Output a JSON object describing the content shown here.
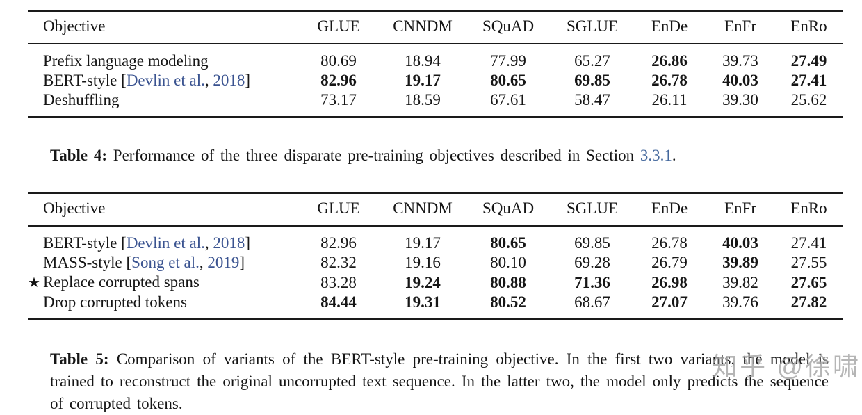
{
  "colors": {
    "citation_link": "#3a5390",
    "section_link": "#44689d",
    "rule": "#1a1a1a",
    "watermark": "#a3a3a3",
    "text": "#161616",
    "background": "#ffffff"
  },
  "icons": {
    "star": "★"
  },
  "tables": [
    {
      "name": "table-4",
      "columns": [
        "Objective",
        "GLUE",
        "CNNDM",
        "SQuAD",
        "SGLUE",
        "EnDe",
        "EnFr",
        "EnRo"
      ],
      "rows": [
        {
          "objective": "Prefix language modeling",
          "star": false,
          "cite": null,
          "values": [
            {
              "v": "80.69",
              "b": false
            },
            {
              "v": "18.94",
              "b": false
            },
            {
              "v": "77.99",
              "b": false
            },
            {
              "v": "65.27",
              "b": false
            },
            {
              "v": "26.86",
              "b": true
            },
            {
              "v": "39.73",
              "b": false
            },
            {
              "v": "27.49",
              "b": true
            }
          ]
        },
        {
          "objective": "BERT-style",
          "star": false,
          "cite": {
            "author": "Devlin et al.",
            "year": "2018"
          },
          "values": [
            {
              "v": "82.96",
              "b": true
            },
            {
              "v": "19.17",
              "b": true
            },
            {
              "v": "80.65",
              "b": true
            },
            {
              "v": "69.85",
              "b": true
            },
            {
              "v": "26.78",
              "b": true
            },
            {
              "v": "40.03",
              "b": true
            },
            {
              "v": "27.41",
              "b": true
            }
          ]
        },
        {
          "objective": "Deshuffling",
          "star": false,
          "cite": null,
          "values": [
            {
              "v": "73.17",
              "b": false
            },
            {
              "v": "18.59",
              "b": false
            },
            {
              "v": "67.61",
              "b": false
            },
            {
              "v": "58.47",
              "b": false
            },
            {
              "v": "26.11",
              "b": false
            },
            {
              "v": "39.30",
              "b": false
            },
            {
              "v": "25.62",
              "b": false
            }
          ]
        }
      ]
    },
    {
      "name": "table-5",
      "columns": [
        "Objective",
        "GLUE",
        "CNNDM",
        "SQuAD",
        "SGLUE",
        "EnDe",
        "EnFr",
        "EnRo"
      ],
      "rows": [
        {
          "objective": "BERT-style",
          "star": false,
          "cite": {
            "author": "Devlin et al.",
            "year": "2018"
          },
          "values": [
            {
              "v": "82.96",
              "b": false
            },
            {
              "v": "19.17",
              "b": false
            },
            {
              "v": "80.65",
              "b": true
            },
            {
              "v": "69.85",
              "b": false
            },
            {
              "v": "26.78",
              "b": false
            },
            {
              "v": "40.03",
              "b": true
            },
            {
              "v": "27.41",
              "b": false
            }
          ]
        },
        {
          "objective": "MASS-style",
          "star": false,
          "cite": {
            "author": "Song et al.",
            "year": "2019"
          },
          "values": [
            {
              "v": "82.32",
              "b": false
            },
            {
              "v": "19.16",
              "b": false
            },
            {
              "v": "80.10",
              "b": false
            },
            {
              "v": "69.28",
              "b": false
            },
            {
              "v": "26.79",
              "b": false
            },
            {
              "v": "39.89",
              "b": true
            },
            {
              "v": "27.55",
              "b": false
            }
          ]
        },
        {
          "objective": "Replace corrupted spans",
          "star": true,
          "cite": null,
          "values": [
            {
              "v": "83.28",
              "b": false
            },
            {
              "v": "19.24",
              "b": true
            },
            {
              "v": "80.88",
              "b": true
            },
            {
              "v": "71.36",
              "b": true
            },
            {
              "v": "26.98",
              "b": true
            },
            {
              "v": "39.82",
              "b": false
            },
            {
              "v": "27.65",
              "b": true
            }
          ]
        },
        {
          "objective": "Drop corrupted tokens",
          "star": false,
          "cite": null,
          "values": [
            {
              "v": "84.44",
              "b": true
            },
            {
              "v": "19.31",
              "b": true
            },
            {
              "v": "80.52",
              "b": true
            },
            {
              "v": "68.67",
              "b": false
            },
            {
              "v": "27.07",
              "b": true
            },
            {
              "v": "39.76",
              "b": false
            },
            {
              "v": "27.82",
              "b": true
            }
          ]
        }
      ]
    }
  ],
  "captions": {
    "table4": {
      "label": "Table 4:",
      "before_link": " Performance of the three disparate pre-training objectives described in Section ",
      "link": "3.3.1",
      "after_link": "."
    },
    "table5": {
      "label": "Table 5:",
      "text": " Comparison of variants of the BERT-style pre-training objective. In the first two variants, the model is trained to reconstruct the original uncorrupted text sequence. In the latter two, the model only predicts the sequence of corrupted tokens."
    }
  },
  "watermark": {
    "text": "知乎 @徐啸"
  }
}
